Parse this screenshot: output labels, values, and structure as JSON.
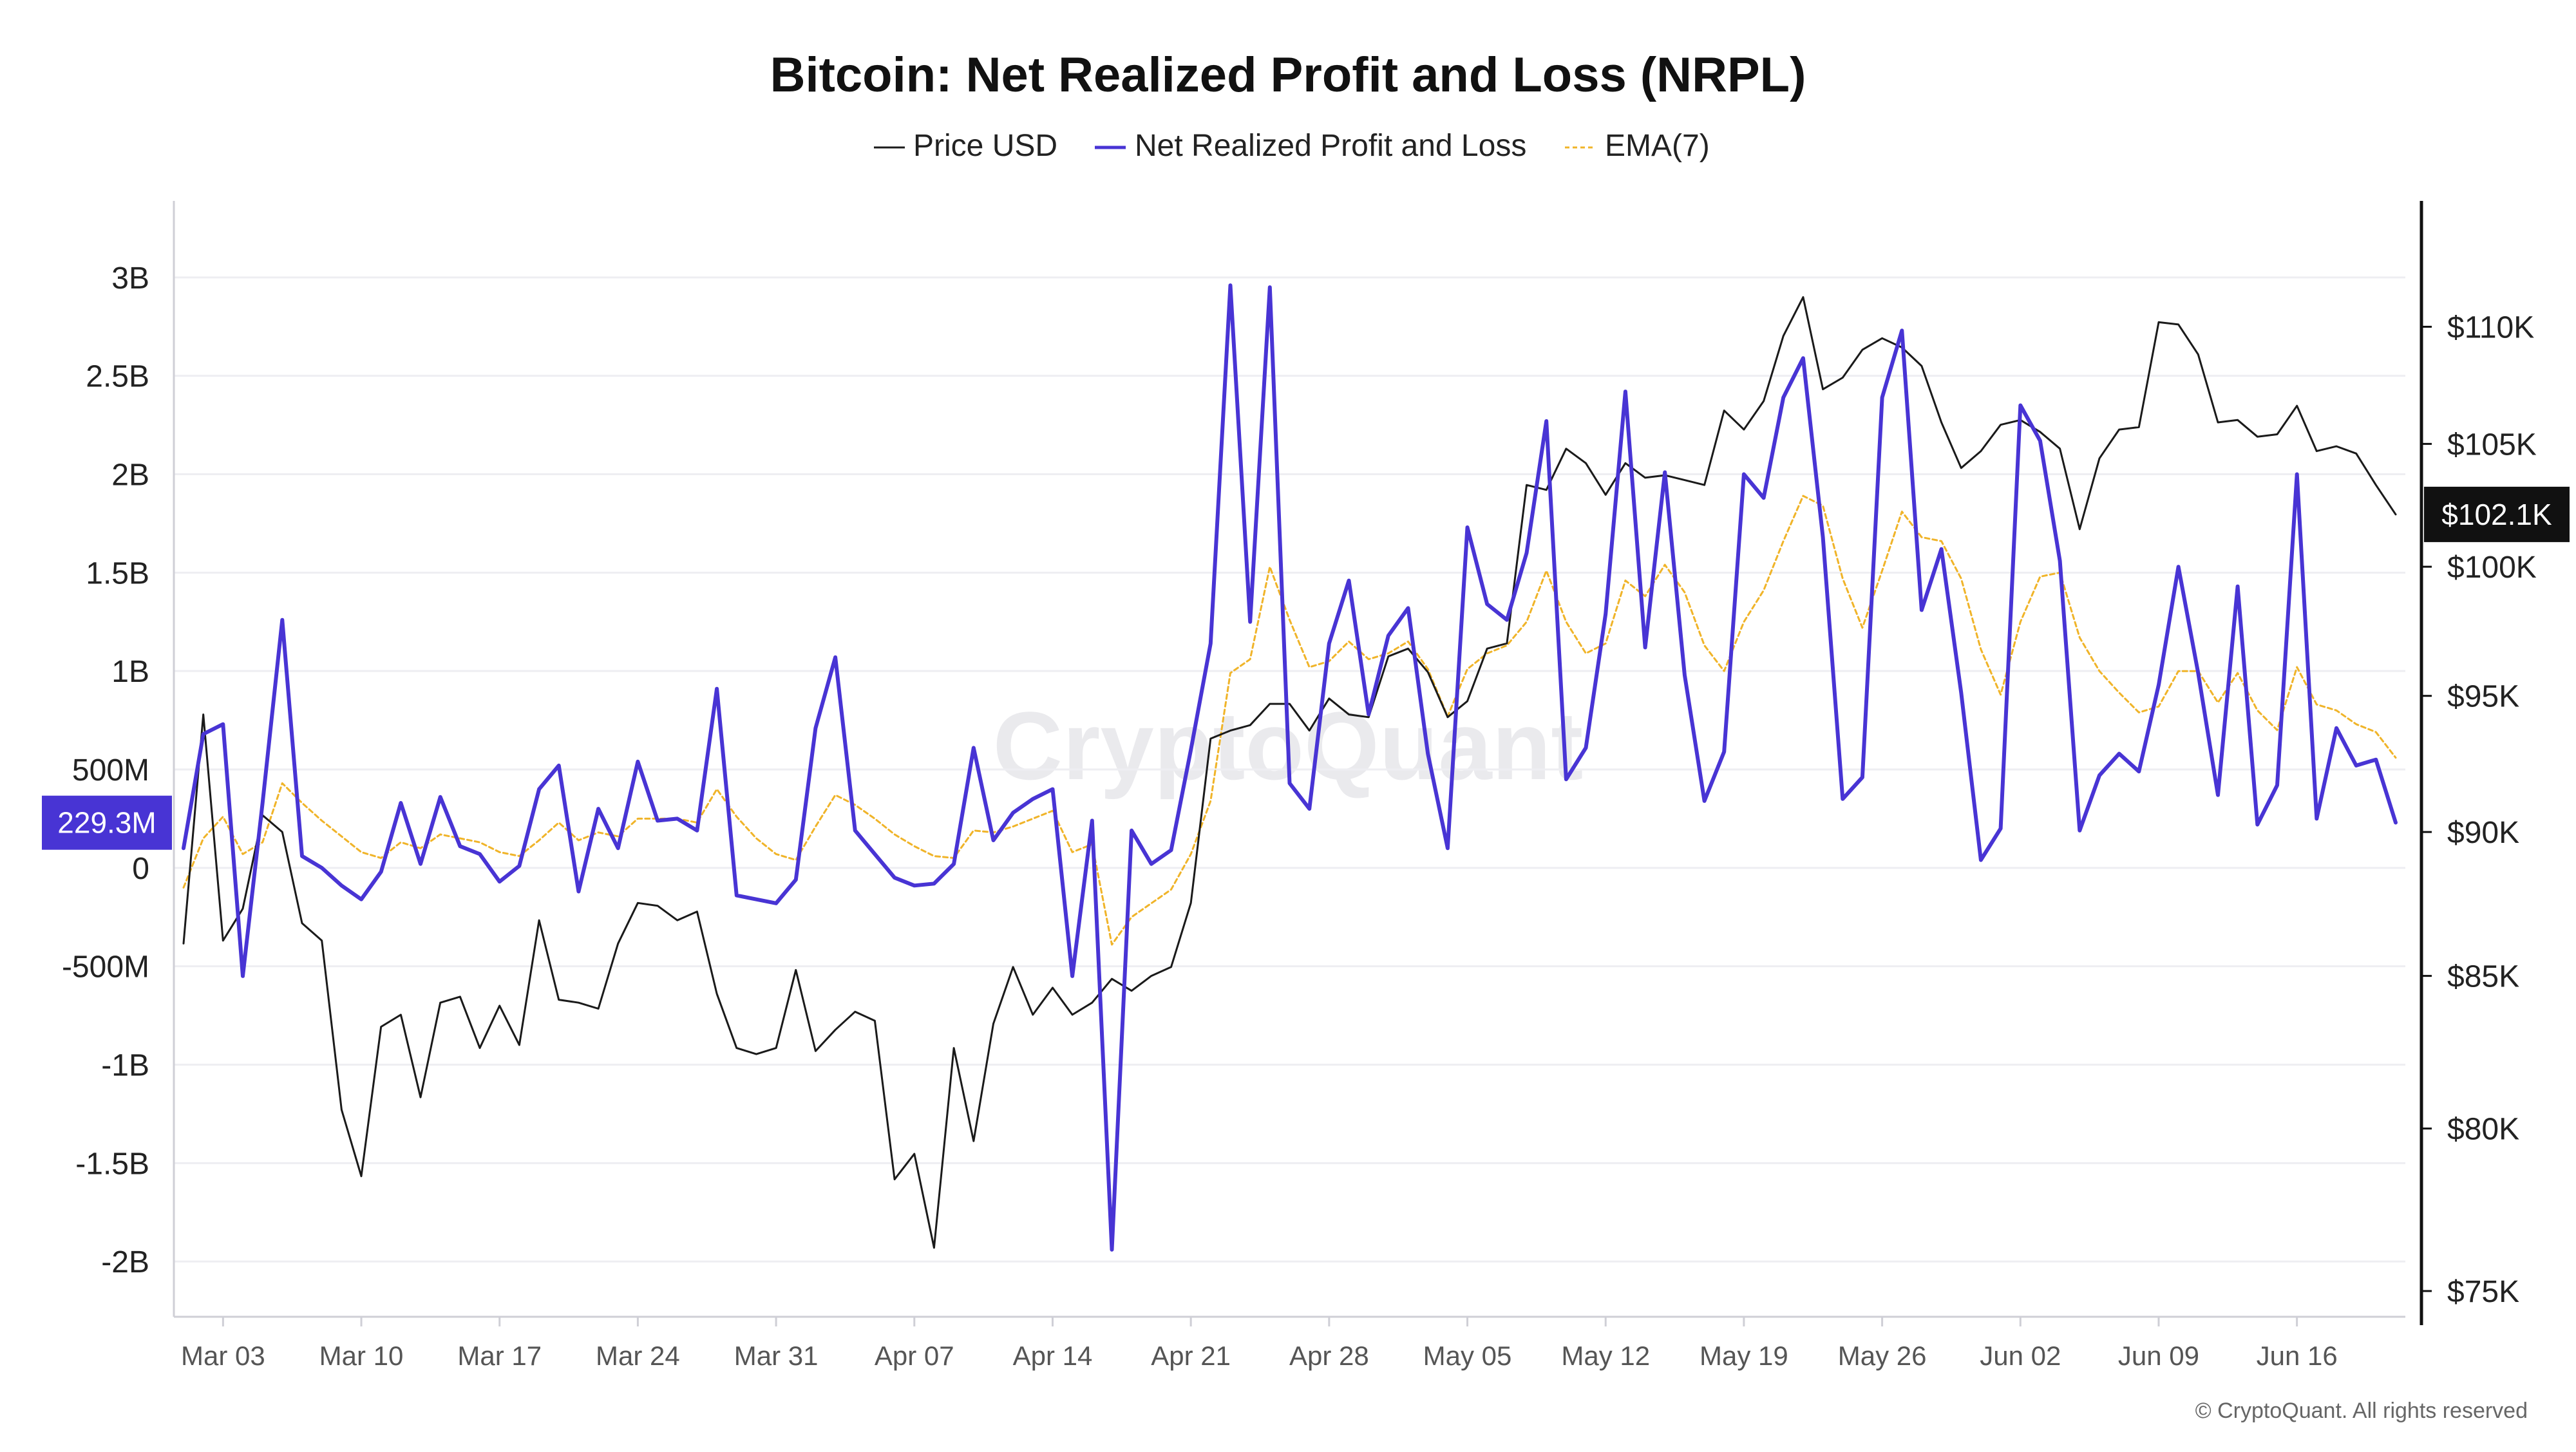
{
  "chart_data": {
    "type": "line",
    "title": "Bitcoin: Net Realized Profit and Loss (NRPL)",
    "legend_position": "top-center",
    "grid": true,
    "watermark": "CryptoQuant",
    "copyright": "© CryptoQuant. All rights reserved",
    "x_axis": {
      "start": "2025-03-01",
      "end": "2025-06-21",
      "tick_dates": [
        "2025-03-03",
        "2025-03-10",
        "2025-03-17",
        "2025-03-24",
        "2025-03-31",
        "2025-04-07",
        "2025-04-14",
        "2025-04-21",
        "2025-04-28",
        "2025-05-05",
        "2025-05-12",
        "2025-05-19",
        "2025-05-26",
        "2025-06-02",
        "2025-06-09",
        "2025-06-16"
      ],
      "tick_labels": [
        "Mar 03",
        "Mar 10",
        "Mar 17",
        "Mar 24",
        "Mar 31",
        "Apr 07",
        "Apr 14",
        "Apr 21",
        "Apr 28",
        "May 05",
        "May 12",
        "May 19",
        "May 26",
        "Jun 02",
        "Jun 09",
        "Jun 16"
      ]
    },
    "y_left": {
      "ylim": [
        -2150000000,
        3150000000
      ],
      "ticks": [
        -2000000000,
        -1500000000,
        -1000000000,
        -500000000,
        0,
        500000000,
        1000000000,
        1500000000,
        2000000000,
        2500000000,
        3000000000
      ],
      "tick_labels": [
        "-2B",
        "-1.5B",
        "-1B",
        "-500M",
        "0",
        "500M",
        "1B",
        "1.5B",
        "2B",
        "2.5B",
        "3B"
      ],
      "current_value_label": "229.3M",
      "current_value": 229300000
    },
    "y_right": {
      "ylim": [
        75000,
        113500
      ],
      "scale": "log",
      "ticks": [
        75000,
        80000,
        85000,
        90000,
        95000,
        100000,
        105000,
        110000
      ],
      "tick_labels": [
        "$75K",
        "$80K",
        "$85K",
        "$90K",
        "$95K",
        "$100K",
        "$105K",
        "$110K"
      ],
      "current_value_label": "$102.1K",
      "current_value": 102100
    },
    "series": [
      {
        "name": "Price USD",
        "color": "#1a1a1a",
        "axis": "right",
        "dates": [
          "2025-03-01",
          "2025-03-02",
          "2025-03-03",
          "2025-03-04",
          "2025-03-05",
          "2025-03-06",
          "2025-03-07",
          "2025-03-08",
          "2025-03-09",
          "2025-03-10",
          "2025-03-11",
          "2025-03-12",
          "2025-03-13",
          "2025-03-14",
          "2025-03-15",
          "2025-03-16",
          "2025-03-17",
          "2025-03-18",
          "2025-03-19",
          "2025-03-20",
          "2025-03-21",
          "2025-03-22",
          "2025-03-23",
          "2025-03-24",
          "2025-03-25",
          "2025-03-26",
          "2025-03-27",
          "2025-03-28",
          "2025-03-29",
          "2025-03-30",
          "2025-03-31",
          "2025-04-01",
          "2025-04-02",
          "2025-04-03",
          "2025-04-04",
          "2025-04-05",
          "2025-04-06",
          "2025-04-07",
          "2025-04-08",
          "2025-04-09",
          "2025-04-10",
          "2025-04-11",
          "2025-04-12",
          "2025-04-13",
          "2025-04-14",
          "2025-04-15",
          "2025-04-16",
          "2025-04-17",
          "2025-04-18",
          "2025-04-19",
          "2025-04-20",
          "2025-04-21",
          "2025-04-22",
          "2025-04-23",
          "2025-04-24",
          "2025-04-25",
          "2025-04-26",
          "2025-04-27",
          "2025-04-28",
          "2025-04-29",
          "2025-04-30",
          "2025-05-01",
          "2025-05-02",
          "2025-05-03",
          "2025-05-04",
          "2025-05-05",
          "2025-05-06",
          "2025-05-07",
          "2025-05-08",
          "2025-05-09",
          "2025-05-10",
          "2025-05-11",
          "2025-05-12",
          "2025-05-13",
          "2025-05-14",
          "2025-05-15",
          "2025-05-16",
          "2025-05-17",
          "2025-05-18",
          "2025-05-19",
          "2025-05-20",
          "2025-05-21",
          "2025-05-22",
          "2025-05-23",
          "2025-05-24",
          "2025-05-25",
          "2025-05-26",
          "2025-05-27",
          "2025-05-28",
          "2025-05-29",
          "2025-05-30",
          "2025-05-31",
          "2025-06-01",
          "2025-06-02",
          "2025-06-03",
          "2025-06-04",
          "2025-06-05",
          "2025-06-06",
          "2025-06-07",
          "2025-06-08",
          "2025-06-09",
          "2025-06-10",
          "2025-06-11",
          "2025-06-12",
          "2025-06-13",
          "2025-06-14",
          "2025-06-15",
          "2025-06-16",
          "2025-06-17",
          "2025-06-18",
          "2025-06-19",
          "2025-06-20",
          "2025-06-21"
        ],
        "values": [
          86100,
          94300,
          86200,
          87300,
          90600,
          90000,
          86800,
          86200,
          80600,
          78500,
          83300,
          83700,
          81000,
          84100,
          84300,
          82600,
          84000,
          82700,
          86900,
          84200,
          84100,
          83900,
          86100,
          87500,
          87400,
          86900,
          87200,
          84400,
          82600,
          82400,
          82600,
          85200,
          82500,
          83200,
          83800,
          83500,
          78400,
          79200,
          76300,
          82600,
          79600,
          83400,
          85300,
          83700,
          84600,
          83700,
          84100,
          84900,
          84500,
          85000,
          85300,
          87500,
          93400,
          93700,
          93900,
          94700,
          94700,
          93700,
          94900,
          94300,
          94200,
          96500,
          96800,
          95900,
          94200,
          94800,
          96800,
          97000,
          103300,
          103100,
          104800,
          104200,
          102900,
          104200,
          103600,
          103700,
          103500,
          103300,
          106400,
          105600,
          106800,
          109600,
          111300,
          107300,
          107800,
          109000,
          109500,
          109100,
          108300,
          105900,
          104000,
          104700,
          105800,
          106000,
          105500,
          104800,
          101500,
          104400,
          105600,
          105700,
          110200,
          110100,
          108800,
          105900,
          106000,
          105300,
          105400,
          106600,
          104700,
          104900,
          104600,
          103300,
          102100
        ]
      },
      {
        "name": "Net Realized Profit and Loss",
        "color": "#4834d4",
        "axis": "left",
        "dates": [
          "2025-03-01",
          "2025-03-02",
          "2025-03-03",
          "2025-03-04",
          "2025-03-05",
          "2025-03-06",
          "2025-03-07",
          "2025-03-08",
          "2025-03-09",
          "2025-03-10",
          "2025-03-11",
          "2025-03-12",
          "2025-03-13",
          "2025-03-14",
          "2025-03-15",
          "2025-03-16",
          "2025-03-17",
          "2025-03-18",
          "2025-03-19",
          "2025-03-20",
          "2025-03-21",
          "2025-03-22",
          "2025-03-23",
          "2025-03-24",
          "2025-03-25",
          "2025-03-26",
          "2025-03-27",
          "2025-03-28",
          "2025-03-29",
          "2025-03-30",
          "2025-03-31",
          "2025-04-01",
          "2025-04-02",
          "2025-04-03",
          "2025-04-04",
          "2025-04-05",
          "2025-04-06",
          "2025-04-07",
          "2025-04-08",
          "2025-04-09",
          "2025-04-10",
          "2025-04-11",
          "2025-04-12",
          "2025-04-13",
          "2025-04-14",
          "2025-04-15",
          "2025-04-16",
          "2025-04-17",
          "2025-04-18",
          "2025-04-19",
          "2025-04-20",
          "2025-04-21",
          "2025-04-22",
          "2025-04-23",
          "2025-04-24",
          "2025-04-25",
          "2025-04-26",
          "2025-04-27",
          "2025-04-28",
          "2025-04-29",
          "2025-04-30",
          "2025-05-01",
          "2025-05-02",
          "2025-05-03",
          "2025-05-04",
          "2025-05-05",
          "2025-05-06",
          "2025-05-07",
          "2025-05-08",
          "2025-05-09",
          "2025-05-10",
          "2025-05-11",
          "2025-05-12",
          "2025-05-13",
          "2025-05-14",
          "2025-05-15",
          "2025-05-16",
          "2025-05-17",
          "2025-05-18",
          "2025-05-19",
          "2025-05-20",
          "2025-05-21",
          "2025-05-22",
          "2025-05-23",
          "2025-05-24",
          "2025-05-25",
          "2025-05-26",
          "2025-05-27",
          "2025-05-28",
          "2025-05-29",
          "2025-05-30",
          "2025-05-31",
          "2025-06-01",
          "2025-06-02",
          "2025-06-03",
          "2025-06-04",
          "2025-06-05",
          "2025-06-06",
          "2025-06-07",
          "2025-06-08",
          "2025-06-09",
          "2025-06-10",
          "2025-06-11",
          "2025-06-12",
          "2025-06-13",
          "2025-06-14",
          "2025-06-15",
          "2025-06-16",
          "2025-06-17",
          "2025-06-18",
          "2025-06-19",
          "2025-06-20",
          "2025-06-21"
        ],
        "values": [
          100000000,
          680000000,
          730000000,
          -550000000,
          330000000,
          1260000000,
          60000000,
          0,
          -90000000,
          -160000000,
          -20000000,
          330000000,
          20000000,
          360000000,
          110000000,
          70000000,
          -70000000,
          10000000,
          400000000,
          520000000,
          -120000000,
          300000000,
          100000000,
          540000000,
          240000000,
          250000000,
          190000000,
          910000000,
          -140000000,
          -160000000,
          -180000000,
          -60000000,
          710000000,
          1070000000,
          190000000,
          70000000,
          -50000000,
          -90000000,
          -80000000,
          20000000,
          610000000,
          140000000,
          280000000,
          350000000,
          400000000,
          -550000000,
          240000000,
          -1940000000,
          190000000,
          20000000,
          90000000,
          600000000,
          1140000000,
          2960000000,
          1250000000,
          2950000000,
          430000000,
          300000000,
          1140000000,
          1460000000,
          780000000,
          1180000000,
          1320000000,
          580000000,
          100000000,
          1730000000,
          1340000000,
          1260000000,
          1600000000,
          2270000000,
          450000000,
          610000000,
          1290000000,
          2420000000,
          1120000000,
          2010000000,
          980000000,
          340000000,
          590000000,
          2000000000,
          1880000000,
          2390000000,
          2590000000,
          1680000000,
          350000000,
          460000000,
          2390000000,
          2730000000,
          1310000000,
          1620000000,
          890000000,
          40000000,
          200000000,
          2350000000,
          2170000000,
          1560000000,
          190000000,
          470000000,
          580000000,
          490000000,
          930000000,
          1530000000,
          990000000,
          370000000,
          1430000000,
          220000000,
          420000000,
          2000000000,
          250000000,
          710000000,
          520000000,
          550000000,
          230000000
        ]
      },
      {
        "name": "EMA(7)",
        "color": "#f0b429",
        "axis": "left",
        "dates": [
          "2025-03-01",
          "2025-03-02",
          "2025-03-03",
          "2025-03-04",
          "2025-03-05",
          "2025-03-06",
          "2025-03-07",
          "2025-03-08",
          "2025-03-09",
          "2025-03-10",
          "2025-03-11",
          "2025-03-12",
          "2025-03-13",
          "2025-03-14",
          "2025-03-15",
          "2025-03-16",
          "2025-03-17",
          "2025-03-18",
          "2025-03-19",
          "2025-03-20",
          "2025-03-21",
          "2025-03-22",
          "2025-03-23",
          "2025-03-24",
          "2025-03-25",
          "2025-03-26",
          "2025-03-27",
          "2025-03-28",
          "2025-03-29",
          "2025-03-30",
          "2025-03-31",
          "2025-04-01",
          "2025-04-02",
          "2025-04-03",
          "2025-04-04",
          "2025-04-05",
          "2025-04-06",
          "2025-04-07",
          "2025-04-08",
          "2025-04-09",
          "2025-04-10",
          "2025-04-11",
          "2025-04-12",
          "2025-04-13",
          "2025-04-14",
          "2025-04-15",
          "2025-04-16",
          "2025-04-17",
          "2025-04-18",
          "2025-04-19",
          "2025-04-20",
          "2025-04-21",
          "2025-04-22",
          "2025-04-23",
          "2025-04-24",
          "2025-04-25",
          "2025-04-26",
          "2025-04-27",
          "2025-04-28",
          "2025-04-29",
          "2025-04-30",
          "2025-05-01",
          "2025-05-02",
          "2025-05-03",
          "2025-05-04",
          "2025-05-05",
          "2025-05-06",
          "2025-05-07",
          "2025-05-08",
          "2025-05-09",
          "2025-05-10",
          "2025-05-11",
          "2025-05-12",
          "2025-05-13",
          "2025-05-14",
          "2025-05-15",
          "2025-05-16",
          "2025-05-17",
          "2025-05-18",
          "2025-05-19",
          "2025-05-20",
          "2025-05-21",
          "2025-05-22",
          "2025-05-23",
          "2025-05-24",
          "2025-05-25",
          "2025-05-26",
          "2025-05-27",
          "2025-05-28",
          "2025-05-29",
          "2025-05-30",
          "2025-05-31",
          "2025-06-01",
          "2025-06-02",
          "2025-06-03",
          "2025-06-04",
          "2025-06-05",
          "2025-06-06",
          "2025-06-07",
          "2025-06-08",
          "2025-06-09",
          "2025-06-10",
          "2025-06-11",
          "2025-06-12",
          "2025-06-13",
          "2025-06-14",
          "2025-06-15",
          "2025-06-16",
          "2025-06-17",
          "2025-06-18",
          "2025-06-19",
          "2025-06-20",
          "2025-06-21"
        ],
        "values": [
          -100000000,
          150000000,
          260000000,
          70000000,
          130000000,
          430000000,
          330000000,
          240000000,
          160000000,
          80000000,
          50000000,
          130000000,
          100000000,
          170000000,
          150000000,
          130000000,
          80000000,
          60000000,
          140000000,
          230000000,
          140000000,
          180000000,
          160000000,
          250000000,
          250000000,
          250000000,
          230000000,
          400000000,
          260000000,
          150000000,
          70000000,
          40000000,
          210000000,
          370000000,
          320000000,
          250000000,
          170000000,
          110000000,
          60000000,
          50000000,
          190000000,
          180000000,
          210000000,
          250000000,
          290000000,
          80000000,
          120000000,
          -390000000,
          -250000000,
          -180000000,
          -110000000,
          70000000,
          340000000,
          990000000,
          1060000000,
          1530000000,
          1260000000,
          1020000000,
          1050000000,
          1150000000,
          1060000000,
          1090000000,
          1150000000,
          1010000000,
          770000000,
          1010000000,
          1090000000,
          1130000000,
          1250000000,
          1510000000,
          1250000000,
          1090000000,
          1140000000,
          1460000000,
          1380000000,
          1540000000,
          1400000000,
          1130000000,
          1000000000,
          1250000000,
          1410000000,
          1660000000,
          1890000000,
          1840000000,
          1470000000,
          1220000000,
          1510000000,
          1810000000,
          1680000000,
          1660000000,
          1470000000,
          1110000000,
          880000000,
          1250000000,
          1480000000,
          1500000000,
          1170000000,
          1000000000,
          890000000,
          790000000,
          820000000,
          1000000000,
          1000000000,
          840000000,
          990000000,
          800000000,
          700000000,
          1020000000,
          830000000,
          800000000,
          730000000,
          690000000,
          560000000
        ]
      }
    ]
  }
}
